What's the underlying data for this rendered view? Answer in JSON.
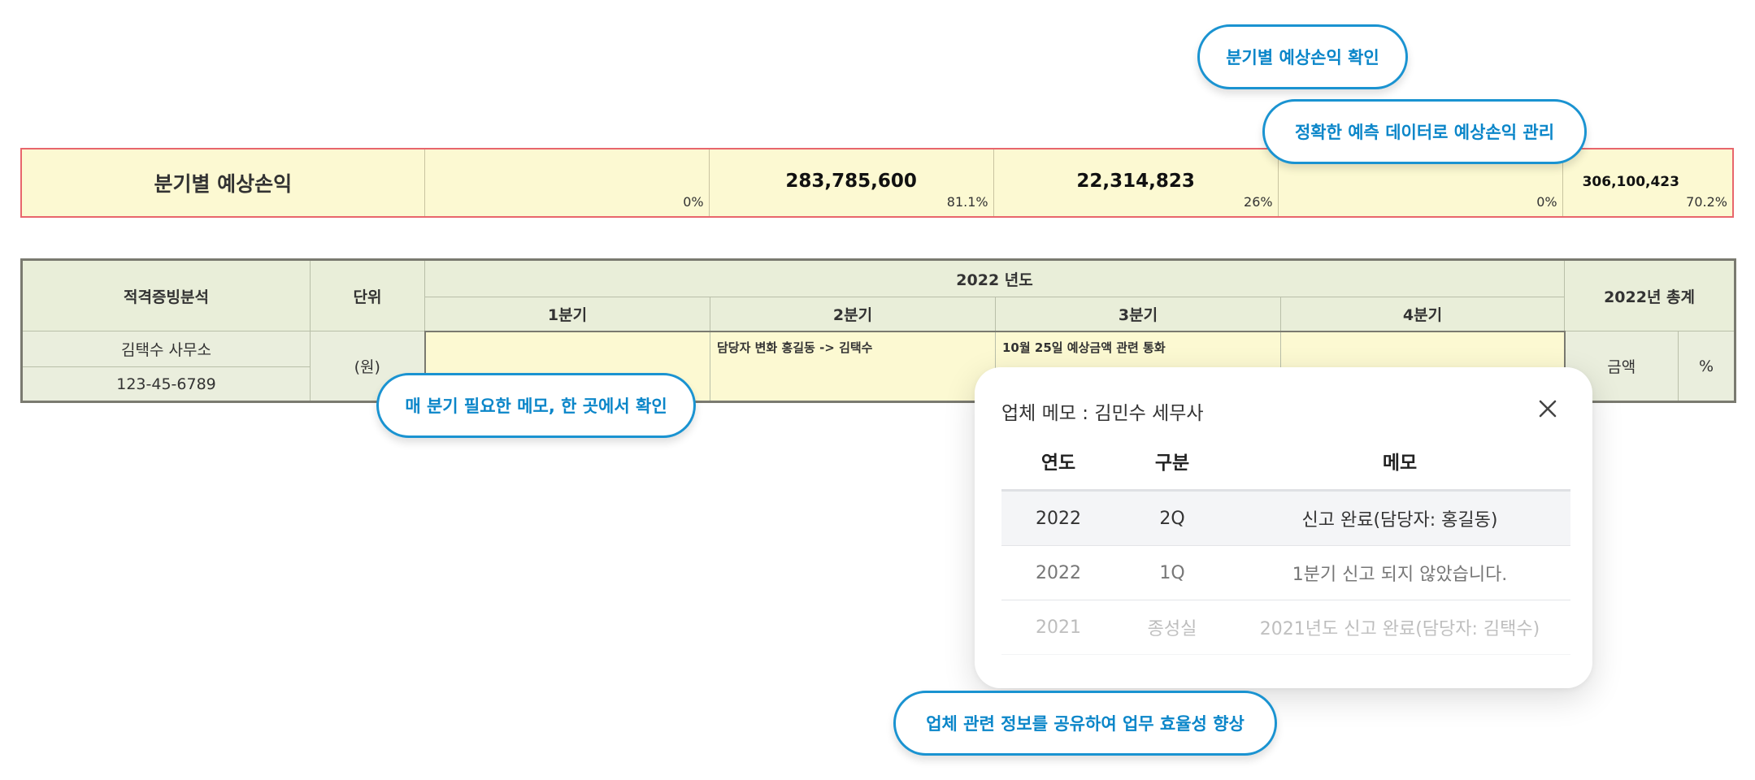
{
  "callouts": {
    "quarterly": "분기별 예상손익 확인",
    "accurate": "정확한 예측 데이터로 예상손익 관리",
    "memo": "매 분기 필요한 메모, 한 곳에서 확인",
    "share": "업체 관련 정보를 공유하여 업무 효율성 향상"
  },
  "summary": {
    "title": "분기별 예상손익",
    "quarters": [
      {
        "amount": "",
        "pct": "0%"
      },
      {
        "amount": "283,785,600",
        "pct": "81.1%"
      },
      {
        "amount": "22,314,823",
        "pct": "26%"
      },
      {
        "amount": "",
        "pct": "0%"
      }
    ],
    "total": {
      "amount": "306,100,423",
      "pct": "70.2%"
    }
  },
  "table": {
    "col_analysis": "적격증빙분석",
    "col_unit": "단위",
    "year_header": "2022 년도",
    "quarters": [
      "1분기",
      "2분기",
      "3분기",
      "4분기"
    ],
    "total_header": "2022년 총계",
    "company": "김택수 사무소",
    "biz_number": "123-45-6789",
    "unit": "(원)",
    "memos": [
      "",
      "담당자 변화 홍길동 -> 김택수",
      "10월 25일 예상금액 관련 통화",
      ""
    ],
    "total_amount_label": "금액",
    "total_pct_label": "%"
  },
  "popup": {
    "title": "업체 메모 : 김민수 세무사",
    "close_icon": "close-icon",
    "headers": {
      "year": "연도",
      "type": "구분",
      "memo": "메모"
    },
    "rows": [
      {
        "year": "2022",
        "type": "2Q",
        "memo": "신고 완료(담당자: 홍길동)"
      },
      {
        "year": "2022",
        "type": "1Q",
        "memo": "1분기 신고 되지 않았습니다."
      },
      {
        "year": "2021",
        "type": "종성실",
        "memo": "2021년도 신고 완료(담당자: 김택수)"
      }
    ]
  },
  "colors": {
    "callout_border": "#1a93d1",
    "callout_text": "#0b86c9",
    "summary_border": "#e8666c",
    "summary_bg": "#fcf9d2",
    "header_bg": "#e9eed9"
  }
}
